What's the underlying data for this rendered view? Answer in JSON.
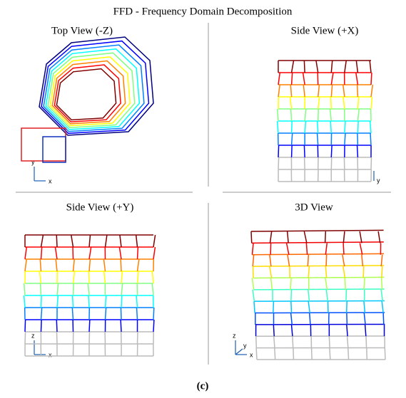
{
  "title": "FFD - Frequency Domain Decomposition",
  "panels": [
    {
      "title": "Top View (-Z)",
      "axes": [
        "y",
        "x"
      ]
    },
    {
      "title": "Side View (+X)",
      "axes": [
        "y"
      ]
    },
    {
      "title": "Side View (+Y)",
      "axes": [
        "z",
        "x"
      ]
    },
    {
      "title": "3D View",
      "axes": [
        "z",
        "y",
        "x"
      ]
    }
  ],
  "caption": "(c)"
}
